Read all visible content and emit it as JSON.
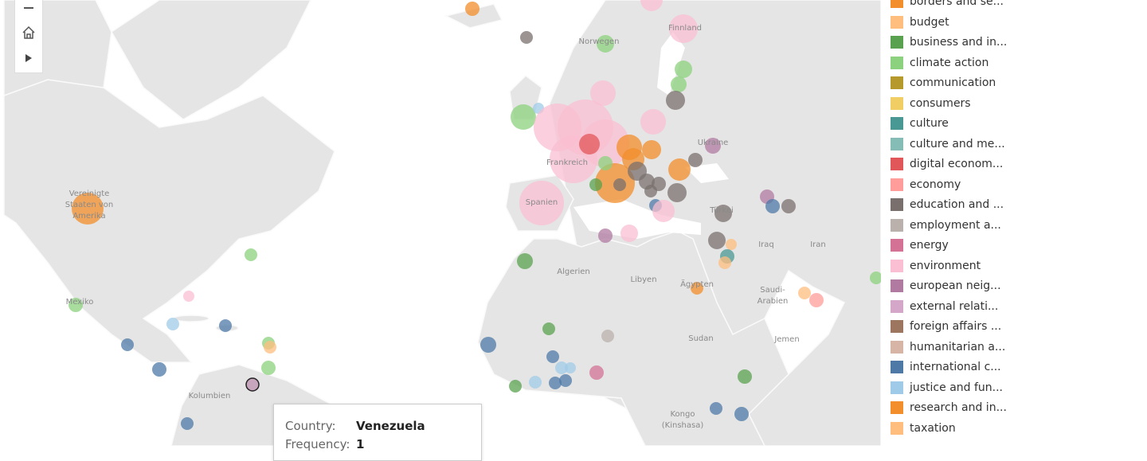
{
  "map": {
    "labels": [
      {
        "text": "Norwegen"
      },
      {
        "text": "Finnland"
      },
      {
        "text": "Frankreich"
      },
      {
        "text": "Spanien"
      },
      {
        "text": "Vereinigte Staaten von Amerika"
      },
      {
        "text": "Mexiko"
      },
      {
        "text": "Kolumbien"
      },
      {
        "text": "Algerien"
      },
      {
        "text": "Libyen"
      },
      {
        "text": "Ägypten"
      },
      {
        "text": "Sudan"
      },
      {
        "text": "Saudi-Arabien"
      },
      {
        "text": "Iraq"
      },
      {
        "text": "Iran"
      },
      {
        "text": "Jemen"
      },
      {
        "text": "Kongo (Kinshasa)"
      },
      {
        "text": "Türkei"
      },
      {
        "text": "Ukraine"
      }
    ]
  },
  "legend": {
    "items": [
      {
        "label": "borders and se...",
        "color": "#f28e2b"
      },
      {
        "label": "budget",
        "color": "#ffbe7d"
      },
      {
        "label": "business and in...",
        "color": "#59a14f"
      },
      {
        "label": "climate action",
        "color": "#8cd17d"
      },
      {
        "label": "communication",
        "color": "#b6992d"
      },
      {
        "label": "consumers",
        "color": "#f1ce63"
      },
      {
        "label": "culture",
        "color": "#499894"
      },
      {
        "label": "culture and me...",
        "color": "#86bcb6"
      },
      {
        "label": "digital econom...",
        "color": "#e15759"
      },
      {
        "label": "economy",
        "color": "#ff9d9a"
      },
      {
        "label": "education and ...",
        "color": "#79706e"
      },
      {
        "label": "employment a...",
        "color": "#bab0ac"
      },
      {
        "label": "energy",
        "color": "#d37295"
      },
      {
        "label": "environment",
        "color": "#fabfd2"
      },
      {
        "label": "european neig...",
        "color": "#b07aa1"
      },
      {
        "label": "external relati...",
        "color": "#d4a6c8"
      },
      {
        "label": "foreign affairs ...",
        "color": "#9d7660"
      },
      {
        "label": "humanitarian a...",
        "color": "#d7b5a6"
      },
      {
        "label": "international c...",
        "color": "#4e79a7"
      },
      {
        "label": "justice and fun...",
        "color": "#a0cbe8"
      },
      {
        "label": "research and in...",
        "color": "#f28e2b"
      },
      {
        "label": "taxation",
        "color": "#ffbe7d"
      }
    ]
  },
  "tooltip": {
    "country_label": "Country:",
    "country": "Venezuela",
    "frequency_label": "Frequency:",
    "frequency": 1
  }
}
